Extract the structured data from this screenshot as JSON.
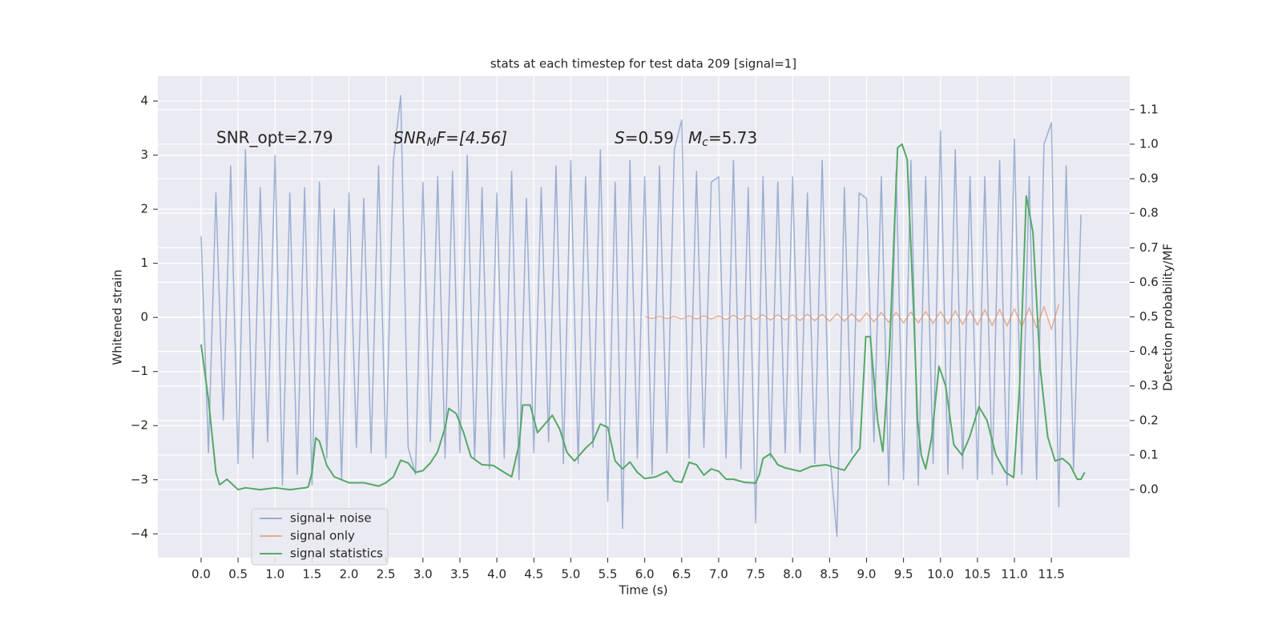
{
  "chart_data": {
    "type": "line",
    "title": "stats at each timestep for test data 209 [signal=1]",
    "xlabel": "Time (s)",
    "ylabel": "Whitened strain",
    "y2label": "Detection probability/MF",
    "annotations": [
      {
        "text": "SNR_opt=2.79"
      },
      {
        "base": "SNR",
        "sub": "M",
        "rest": "F=[4.56]"
      },
      {
        "base": "S",
        "rest": "=0.59"
      },
      {
        "base": "M",
        "sub": "c",
        "rest": "=5.73"
      }
    ],
    "xlim": [
      -0.585,
      12.56
    ],
    "ylim": [
      -4.44,
      4.46
    ],
    "y2lim": [
      -0.197,
      1.197
    ],
    "xticks": [
      {
        "value": 0,
        "label": "0.0"
      },
      {
        "value": 0.5,
        "label": "0.5"
      },
      {
        "value": 1,
        "label": "1.0"
      },
      {
        "value": 1.5,
        "label": "1.5"
      },
      {
        "value": 2,
        "label": "2.0"
      },
      {
        "value": 2.5,
        "label": "2.5"
      },
      {
        "value": 3,
        "label": "3.0"
      },
      {
        "value": 3.5,
        "label": "3.5"
      },
      {
        "value": 4,
        "label": "4.0"
      },
      {
        "value": 4.5,
        "label": "4.5"
      },
      {
        "value": 5,
        "label": "5.0"
      },
      {
        "value": 5.5,
        "label": "5.5"
      },
      {
        "value": 6,
        "label": "6.0"
      },
      {
        "value": 6.5,
        "label": "6.5"
      },
      {
        "value": 7,
        "label": "7.0"
      },
      {
        "value": 7.5,
        "label": "7.5"
      },
      {
        "value": 8,
        "label": "8.0"
      },
      {
        "value": 8.5,
        "label": "8.5"
      },
      {
        "value": 9,
        "label": "9.0"
      },
      {
        "value": 9.5,
        "label": "9.5"
      },
      {
        "value": 10,
        "label": "10.0"
      },
      {
        "value": 10.5,
        "label": "10.5"
      },
      {
        "value": 11,
        "label": "11.0"
      },
      {
        "value": 11.5,
        "label": "11.5"
      }
    ],
    "yticks": [
      {
        "value": -4,
        "label": "−4"
      },
      {
        "value": -3,
        "label": "−3"
      },
      {
        "value": -2,
        "label": "−2"
      },
      {
        "value": -1,
        "label": "−1"
      },
      0,
      1,
      2,
      3,
      4
    ],
    "y2ticks": [
      {
        "value": 0,
        "label": "0.0"
      },
      {
        "value": 0.1,
        "label": "0.1"
      },
      {
        "value": 0.2,
        "label": "0.2"
      },
      {
        "value": 0.3,
        "label": "0.3"
      },
      {
        "value": 0.4,
        "label": "0.4"
      },
      {
        "value": 0.5,
        "label": "0.5"
      },
      {
        "value": 0.6,
        "label": "0.6"
      },
      {
        "value": 0.7,
        "label": "0.7"
      },
      {
        "value": 0.8,
        "label": "0.8"
      },
      {
        "value": 0.9,
        "label": "0.9"
      },
      {
        "value": 1,
        "label": "1.0"
      },
      {
        "value": 1.1,
        "label": "1.1"
      }
    ],
    "grid": true,
    "legend": "lower left",
    "series": [
      {
        "name": "signal+ noise",
        "color": "#4c72b0",
        "opacity": 0.5,
        "x": [
          0.0,
          0.1,
          0.2,
          0.3,
          0.4,
          0.5,
          0.6,
          0.7,
          0.8,
          0.9,
          1.0,
          1.1,
          1.2,
          1.3,
          1.4,
          1.5,
          1.6,
          1.7,
          1.8,
          1.9,
          2.0,
          2.1,
          2.2,
          2.3,
          2.4,
          2.5,
          2.6,
          2.7,
          2.8,
          2.9,
          3.0,
          3.1,
          3.2,
          3.3,
          3.4,
          3.5,
          3.6,
          3.7,
          3.8,
          3.9,
          4.0,
          4.1,
          4.2,
          4.3,
          4.4,
          4.5,
          4.6,
          4.7,
          4.8,
          4.9,
          5.0,
          5.1,
          5.2,
          5.3,
          5.4,
          5.5,
          5.6,
          5.7,
          5.8,
          5.9,
          6.0,
          6.1,
          6.2,
          6.3,
          6.4,
          6.5,
          6.6,
          6.7,
          6.8,
          6.9,
          7.0,
          7.1,
          7.2,
          7.3,
          7.4,
          7.5,
          7.6,
          7.7,
          7.8,
          7.9,
          8.0,
          8.1,
          8.2,
          8.3,
          8.4,
          8.5,
          8.6,
          8.7,
          8.8,
          8.9,
          9.0,
          9.1,
          9.2,
          9.3,
          9.4,
          9.5,
          9.6,
          9.7,
          9.8,
          9.9,
          10.0,
          10.1,
          10.2,
          10.3,
          10.4,
          10.5,
          10.6,
          10.7,
          10.8,
          10.9,
          11.0,
          11.1,
          11.2,
          11.3,
          11.4,
          11.5,
          11.6,
          11.7,
          11.8,
          11.9
        ],
        "values": [
          1.5,
          -2.5,
          2.3,
          -1.9,
          2.8,
          -2.7,
          3.1,
          -2.6,
          2.4,
          -2.3,
          3.0,
          -3.1,
          2.3,
          -2.9,
          2.4,
          -3.1,
          2.5,
          -2.6,
          2.0,
          -3.0,
          2.3,
          -2.4,
          2.2,
          -2.5,
          2.8,
          -2.6,
          2.9,
          4.1,
          -2.4,
          -2.9,
          2.5,
          -2.3,
          2.6,
          -2.6,
          2.7,
          -2.5,
          3.0,
          -2.6,
          2.4,
          -2.8,
          2.3,
          -2.6,
          2.7,
          -3.0,
          2.2,
          -2.5,
          2.4,
          -2.3,
          2.8,
          -2.7,
          2.9,
          -2.7,
          2.6,
          -2.4,
          3.1,
          -3.4,
          2.5,
          -3.9,
          2.9,
          -2.6,
          2.6,
          -2.9,
          2.8,
          -2.5,
          3.1,
          3.65,
          -2.6,
          2.7,
          -2.4,
          2.5,
          2.6,
          -2.6,
          2.9,
          -2.8,
          2.4,
          -3.8,
          2.6,
          -2.6,
          2.5,
          -2.5,
          2.6,
          -2.5,
          2.3,
          -2.7,
          2.9,
          -2.5,
          -4.05,
          2.4,
          -2.5,
          2.3,
          2.2,
          -2.3,
          2.6,
          -3.1,
          2.7,
          -3.0,
          2.9,
          -3.1,
          2.6,
          -2.7,
          3.45,
          -2.9,
          3.1,
          -2.8,
          2.6,
          -3.0,
          2.6,
          -2.9,
          2.9,
          -3.1,
          3.3,
          -2.9,
          2.6,
          -3.0,
          3.2,
          3.6,
          -3.5,
          2.8,
          -2.8,
          1.9
        ]
      },
      {
        "name": "signal only",
        "color": "#dd8452",
        "opacity": 0.6,
        "x": [
          6.0,
          6.1,
          6.2,
          6.3,
          6.4,
          6.5,
          6.6,
          6.7,
          6.8,
          6.9,
          7.0,
          7.1,
          7.2,
          7.3,
          7.4,
          7.5,
          7.6,
          7.7,
          7.8,
          7.9,
          8.0,
          8.1,
          8.2,
          8.3,
          8.4,
          8.5,
          8.6,
          8.7,
          8.8,
          8.9,
          9.0,
          9.1,
          9.2,
          9.3,
          9.4,
          9.5,
          9.6,
          9.7,
          9.8,
          9.9,
          10.0,
          10.1,
          10.2,
          10.3,
          10.4,
          10.5,
          10.6,
          10.7,
          10.8,
          10.9,
          11.0,
          11.1,
          11.2,
          11.3,
          11.4,
          11.5,
          11.6
        ],
        "values": [
          0.02,
          -0.02,
          0.02,
          -0.02,
          0.02,
          -0.03,
          0.03,
          -0.03,
          0.03,
          -0.03,
          0.03,
          -0.04,
          0.04,
          -0.04,
          0.04,
          -0.04,
          0.05,
          -0.05,
          0.05,
          -0.05,
          0.05,
          -0.06,
          0.06,
          -0.06,
          0.06,
          -0.07,
          0.07,
          -0.07,
          0.07,
          -0.08,
          0.08,
          -0.08,
          0.09,
          -0.09,
          0.09,
          -0.1,
          0.1,
          -0.1,
          0.11,
          -0.11,
          0.11,
          -0.12,
          0.12,
          -0.13,
          0.13,
          -0.14,
          0.14,
          -0.15,
          0.15,
          -0.16,
          0.16,
          -0.17,
          0.18,
          -0.19,
          0.2,
          -0.22,
          0.24
        ]
      },
      {
        "name": "signal statistics",
        "color": "#55a868",
        "opacity": 1,
        "axis": "y2",
        "x": [
          0.0,
          0.1,
          0.2,
          0.25,
          0.35,
          0.5,
          0.6,
          0.8,
          1.0,
          1.2,
          1.4,
          1.45,
          1.5,
          1.55,
          1.6,
          1.7,
          1.8,
          2.0,
          2.2,
          2.4,
          2.5,
          2.6,
          2.7,
          2.8,
          2.9,
          3.0,
          3.1,
          3.2,
          3.3,
          3.35,
          3.45,
          3.55,
          3.65,
          3.8,
          3.95,
          4.1,
          4.2,
          4.3,
          4.35,
          4.45,
          4.55,
          4.65,
          4.75,
          4.85,
          4.95,
          5.05,
          5.2,
          5.3,
          5.4,
          5.5,
          5.6,
          5.7,
          5.8,
          5.9,
          6.0,
          6.15,
          6.3,
          6.4,
          6.5,
          6.6,
          6.7,
          6.8,
          6.9,
          7.0,
          7.1,
          7.2,
          7.35,
          7.5,
          7.55,
          7.6,
          7.7,
          7.8,
          7.9,
          8.1,
          8.25,
          8.45,
          8.7,
          8.8,
          8.91,
          8.99,
          9.05,
          9.15,
          9.22,
          9.31,
          9.42,
          9.48,
          9.55,
          9.64,
          9.69,
          9.74,
          9.8,
          9.88,
          9.98,
          10.07,
          10.18,
          10.29,
          10.39,
          10.52,
          10.63,
          10.75,
          10.88,
          10.99,
          11.07,
          11.16,
          11.25,
          11.35,
          11.45,
          11.55,
          11.65,
          11.75,
          11.85,
          11.9,
          11.95
        ],
        "values": [
          0.42,
          0.26,
          0.05,
          0.014,
          0.03,
          0.0,
          0.005,
          0.0,
          0.005,
          0.0,
          0.005,
          0.008,
          0.05,
          0.15,
          0.14,
          0.07,
          0.037,
          0.02,
          0.02,
          0.01,
          0.02,
          0.037,
          0.085,
          0.077,
          0.05,
          0.055,
          0.077,
          0.11,
          0.18,
          0.235,
          0.22,
          0.165,
          0.095,
          0.072,
          0.07,
          0.05,
          0.037,
          0.13,
          0.245,
          0.245,
          0.165,
          0.19,
          0.215,
          0.175,
          0.107,
          0.083,
          0.12,
          0.14,
          0.19,
          0.18,
          0.083,
          0.06,
          0.08,
          0.05,
          0.032,
          0.037,
          0.053,
          0.025,
          0.021,
          0.079,
          0.072,
          0.042,
          0.06,
          0.053,
          0.03,
          0.03,
          0.021,
          0.019,
          0.044,
          0.09,
          0.104,
          0.072,
          0.063,
          0.053,
          0.067,
          0.072,
          0.056,
          0.088,
          0.12,
          0.443,
          0.443,
          0.2,
          0.11,
          0.4,
          0.99,
          1.0,
          0.955,
          0.5,
          0.2,
          0.1,
          0.06,
          0.15,
          0.357,
          0.3,
          0.13,
          0.1,
          0.15,
          0.24,
          0.2,
          0.1,
          0.05,
          0.035,
          0.3,
          0.85,
          0.745,
          0.35,
          0.153,
          0.083,
          0.09,
          0.072,
          0.03,
          0.03,
          0.05
        ]
      }
    ]
  }
}
